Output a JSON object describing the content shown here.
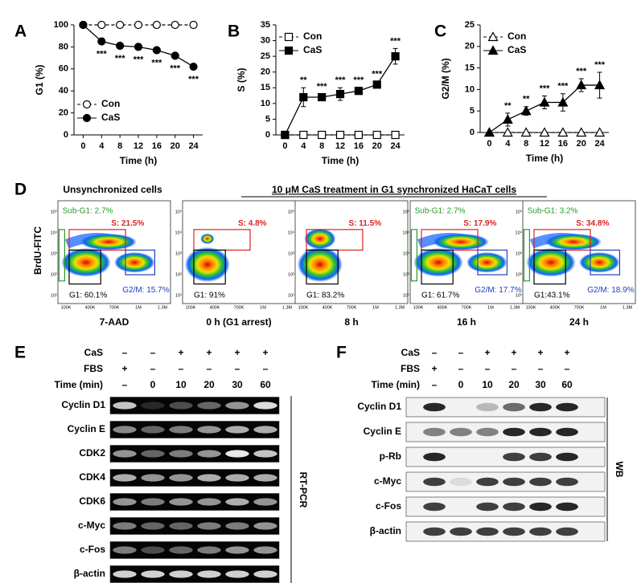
{
  "panel_labels": [
    "A",
    "B",
    "C",
    "D",
    "E",
    "F"
  ],
  "chart_data": [
    {
      "type": "line",
      "xlabel": "Time (h)",
      "ylabel": "G1 (%)",
      "x": [
        0,
        4,
        8,
        12,
        16,
        20,
        24
      ],
      "xlim": [
        -2,
        26
      ],
      "xticks": [
        0,
        4,
        8,
        12,
        16,
        20,
        24
      ],
      "ylim": [
        0,
        100
      ],
      "yticks": [
        0,
        20,
        40,
        60,
        80,
        100
      ],
      "legend": "lower left",
      "annotation_side": "below",
      "series": [
        {
          "name": "Con",
          "color": "#000000",
          "marker": "circle",
          "filled": false,
          "line_style": "dashed",
          "values": [
            100,
            100,
            100,
            100,
            100,
            100,
            100
          ]
        },
        {
          "name": "CaS",
          "color": "#000000",
          "marker": "circle",
          "filled": true,
          "line_style": "solid",
          "values": [
            100,
            85,
            81,
            80,
            77,
            72,
            62
          ]
        }
      ],
      "annotations": [
        null,
        "***",
        "***",
        "***",
        "***",
        "***",
        "***"
      ]
    },
    {
      "type": "line",
      "xlabel": "Time (h)",
      "ylabel": "S (%)",
      "x": [
        0,
        4,
        8,
        12,
        16,
        20,
        24
      ],
      "xlim": [
        -2,
        26
      ],
      "xticks": [
        0,
        4,
        8,
        12,
        16,
        20,
        24
      ],
      "ylim": [
        0,
        35
      ],
      "yticks": [
        0,
        5,
        10,
        15,
        20,
        25,
        30,
        35
      ],
      "legend": "upper left",
      "annotation_side": "above",
      "series": [
        {
          "name": "Con",
          "color": "#000000",
          "marker": "square",
          "filled": false,
          "line_style": "dashed",
          "values": [
            0,
            0,
            0,
            0,
            0,
            0,
            0
          ]
        },
        {
          "name": "CaS",
          "color": "#000000",
          "marker": "square",
          "filled": true,
          "line_style": "solid",
          "values": [
            0,
            12,
            12,
            13,
            14,
            16,
            25
          ],
          "errors": [
            0,
            3,
            1,
            2,
            1,
            1,
            2.5
          ]
        }
      ],
      "annotations": [
        null,
        "**",
        "***",
        "***",
        "***",
        "***",
        "***"
      ]
    },
    {
      "type": "line",
      "xlabel": "Time (h)",
      "ylabel": "G2/M (%)",
      "x": [
        0,
        4,
        8,
        12,
        16,
        20,
        24
      ],
      "xlim": [
        -2,
        26
      ],
      "xticks": [
        0,
        4,
        8,
        12,
        16,
        20,
        24
      ],
      "ylim": [
        0,
        25
      ],
      "yticks": [
        0,
        5,
        10,
        15,
        20,
        25
      ],
      "legend": "upper left",
      "annotation_side": "above",
      "series": [
        {
          "name": "Con",
          "color": "#000000",
          "marker": "triangle",
          "filled": false,
          "line_style": "dashed",
          "values": [
            0,
            0,
            0,
            0,
            0,
            0,
            0
          ]
        },
        {
          "name": "CaS",
          "color": "#000000",
          "marker": "triangle",
          "filled": true,
          "line_style": "solid",
          "values": [
            0,
            3,
            5,
            7,
            7,
            11,
            11
          ],
          "errors": [
            0,
            1.5,
            1,
            1.5,
            2,
            1.5,
            3
          ]
        }
      ],
      "annotations": [
        null,
        "**",
        "**",
        "***",
        "***",
        "***",
        "***"
      ]
    }
  ],
  "flow": {
    "title_left": "Unsynchronized cells",
    "title_right": "10 μM CaS treatment in G1 synchronized HaCaT cells",
    "y_label": "BrdU-FITC",
    "x_ticks": [
      "100K",
      "400K",
      "700K",
      "1M",
      "1.3M"
    ],
    "y_ticks": [
      "10⁵",
      "10⁴",
      "10³",
      "10²",
      "10¹"
    ],
    "plots": [
      {
        "label": "7-AAD",
        "gates": {
          "sub_g1": "Sub-G1: 2.7%",
          "s": "S: 21.5%",
          "g1": "G1: 60.1%",
          "g2m": "G2/M: 15.7%"
        }
      },
      {
        "label": "0 h (G1 arrest)",
        "gates": {
          "s": "S: 4.8%",
          "g1": "G1: 91%"
        }
      },
      {
        "label": "8 h",
        "gates": {
          "s": "S: 11.5%",
          "g1": "G1: 83.2%"
        }
      },
      {
        "label": "16 h",
        "gates": {
          "sub_g1": "Sub-G1: 2.7%",
          "s": "S: 17.9%",
          "g1": "G1: 61.7%",
          "g2m": "G2/M: 17.7%"
        }
      },
      {
        "label": "24 h",
        "gates": {
          "sub_g1": "Sub-G1: 3.2%",
          "s": "S: 34.8%",
          "g1": "G1:43.1%",
          "g2m": "G2/M: 18.9%"
        }
      }
    ]
  },
  "rt_pcr": {
    "method": "RT-PCR",
    "header": [
      {
        "label": "CaS",
        "values": [
          "–",
          "–",
          "+",
          "+",
          "+",
          "+"
        ]
      },
      {
        "label": "FBS",
        "values": [
          "+",
          "–",
          "–",
          "–",
          "–",
          "–"
        ]
      },
      {
        "label": "Time (min)",
        "values": [
          "–",
          "0",
          "10",
          "20",
          "30",
          "60"
        ]
      }
    ],
    "genes": [
      "Cyclin D1",
      "Cyclin E",
      "CDK2",
      "CDK4",
      "CDK6",
      "c-Myc",
      "c-Fos",
      "β-actin"
    ]
  },
  "western": {
    "method": "WB",
    "header": [
      {
        "label": "CaS",
        "values": [
          "–",
          "–",
          "+",
          "+",
          "+",
          "+"
        ]
      },
      {
        "label": "FBS",
        "values": [
          "+",
          "–",
          "–",
          "–",
          "–",
          "–"
        ]
      },
      {
        "label": "Time (min)",
        "values": [
          "–",
          "0",
          "10",
          "20",
          "30",
          "60"
        ]
      }
    ],
    "proteins": [
      "Cyclin D1",
      "Cyclin E",
      "p-Rb",
      "c-Myc",
      "c-Fos",
      "β-actin"
    ]
  }
}
